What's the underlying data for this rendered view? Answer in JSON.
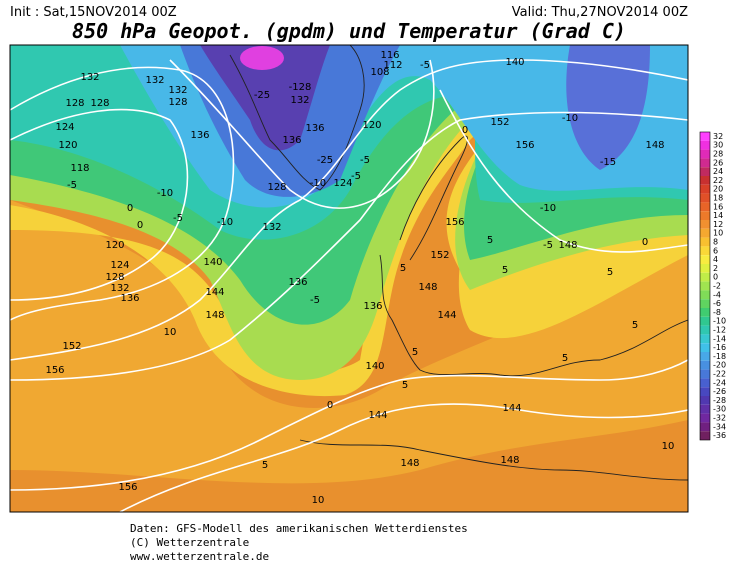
{
  "header": {
    "init": "Init : Sat,15NOV2014 00Z",
    "valid": "Valid: Thu,27NOV2014 00Z",
    "title": "850 hPa Geopot. (gpdm) und Temperatur (Grad C)"
  },
  "colorbar": {
    "ticks": [
      32,
      30,
      28,
      26,
      24,
      22,
      20,
      18,
      16,
      14,
      12,
      10,
      8,
      6,
      4,
      2,
      0,
      -2,
      -4,
      -6,
      -8,
      -10,
      -12,
      -14,
      -16,
      -18,
      -20,
      -22,
      -24,
      -26,
      -28,
      -30,
      -32,
      -34,
      -36
    ],
    "colors": [
      "#ff40ff",
      "#f030e0",
      "#e02ab8",
      "#d02a90",
      "#c02a60",
      "#c83030",
      "#d84028",
      "#e05028",
      "#e86428",
      "#ec7a2a",
      "#f09030",
      "#f4a830",
      "#f8c030",
      "#fad838",
      "#f8ec40",
      "#e0f040",
      "#c0ec48",
      "#a0e450",
      "#80dc58",
      "#60d460",
      "#40cc70",
      "#30c890",
      "#30c8b0",
      "#38c8d0",
      "#40c0e8",
      "#48a8e8",
      "#4890e0",
      "#4878d8",
      "#4860d0",
      "#4848c0",
      "#5038b0",
      "#6030a8",
      "#7028a0",
      "#702080",
      "#702060"
    ]
  },
  "contour_labels": [
    132,
    132,
    132,
    128,
    128,
    128,
    124,
    120,
    118,
    -5,
    0,
    -10,
    -5,
    136,
    -10,
    -25,
    -128,
    132,
    136,
    136,
    128,
    -10,
    -25,
    124,
    -5,
    -5,
    120,
    116,
    112,
    108,
    -5,
    140,
    0,
    152,
    156,
    -10,
    -10,
    -15,
    148,
    0,
    120,
    124,
    128,
    132,
    136,
    140,
    132,
    136,
    144,
    148,
    -5,
    10,
    152,
    156,
    136,
    140,
    144,
    0,
    5,
    5,
    156,
    152,
    5,
    148,
    144,
    5,
    5,
    -5,
    148,
    0,
    5,
    5,
    5,
    144,
    148,
    148,
    5,
    156,
    10,
    10
  ],
  "footer": [
    "Daten: GFS-Modell des amerikanischen Wetterdienstes",
    "(C) Wetterzentrale",
    "www.wetterzentrale.de"
  ]
}
